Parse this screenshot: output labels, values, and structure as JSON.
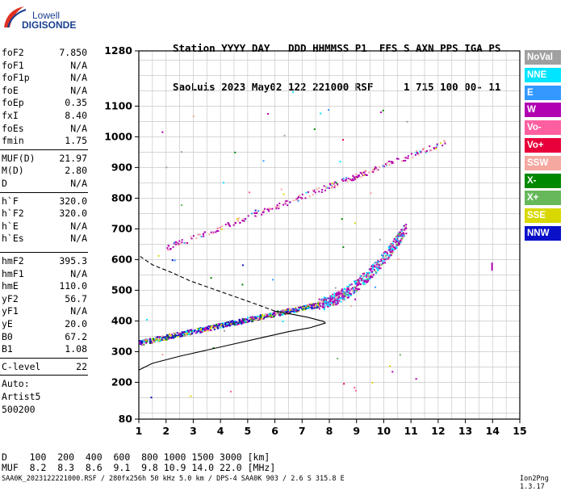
{
  "logo": {
    "line1": "Lowell",
    "line2": "DIGISONDE"
  },
  "header": {
    "line1": "Station YYYY DAY   DDD HHMMSS P1  FFS S AXN PPS IGA PS",
    "line2": "SaoLuis 2023 May02 122 221000 RSF     1 715 100 00- 11"
  },
  "params_group1": [
    {
      "k": "foF2",
      "v": "7.850"
    },
    {
      "k": "foF1",
      "v": "N/A"
    },
    {
      "k": "foF1p",
      "v": "N/A"
    },
    {
      "k": "foE",
      "v": "N/A"
    },
    {
      "k": "foEp",
      "v": "0.35"
    },
    {
      "k": "fxI",
      "v": "8.40"
    },
    {
      "k": "foEs",
      "v": "N/A"
    },
    {
      "k": "fmin",
      "v": "1.75"
    }
  ],
  "params_group2": [
    {
      "k": "MUF(D)",
      "v": "21.97"
    },
    {
      "k": "M(D)",
      "v": "2.80"
    },
    {
      "k": "D",
      "v": "N/A"
    }
  ],
  "params_group3": [
    {
      "k": "h`F",
      "v": "320.0"
    },
    {
      "k": "h`F2",
      "v": "320.0"
    },
    {
      "k": "h`E",
      "v": "N/A"
    },
    {
      "k": "h`Es",
      "v": "N/A"
    }
  ],
  "params_group4": [
    {
      "k": "hmF2",
      "v": "395.3"
    },
    {
      "k": "hmF1",
      "v": "N/A"
    },
    {
      "k": "hmE",
      "v": "110.0"
    },
    {
      "k": "yF2",
      "v": "56.7"
    },
    {
      "k": "yF1",
      "v": "N/A"
    },
    {
      "k": "yE",
      "v": "20.0"
    },
    {
      "k": "B0",
      "v": "67.2"
    },
    {
      "k": "B1",
      "v": "1.08"
    }
  ],
  "clevel": {
    "k": "C-level",
    "v": "22"
  },
  "autoscaling": {
    "line1": "Auto:",
    "line2": "Artist5",
    "line3": "500200"
  },
  "legend": [
    {
      "label": "NoVal",
      "color": "#a0a0a0"
    },
    {
      "label": "NNE",
      "color": "#00e5ff"
    },
    {
      "label": "E",
      "color": "#3399ff"
    },
    {
      "label": "W",
      "color": "#b000b0"
    },
    {
      "label": "Vo-",
      "color": "#ff5fa0"
    },
    {
      "label": "Vo+",
      "color": "#e8003a"
    },
    {
      "label": "SSW",
      "color": "#f4a8a0"
    },
    {
      "label": "X-",
      "color": "#008800"
    },
    {
      "label": "X+",
      "color": "#66b85a"
    },
    {
      "label": "SSE",
      "color": "#d8d800"
    },
    {
      "label": "NNW",
      "color": "#0a10c8"
    }
  ],
  "muf_table": {
    "d_line": "D    100  200  400  600  800 1000 1500 3000 [km]",
    "muf_line": "MUF  8.2  8.3  8.6  9.1  9.8 10.9 14.0 22.0 [MHz]"
  },
  "footer": {
    "left": "SAA0K_2023122221000.RSF / 280fx256h 50 kHz 5.0 km / DPS-4 SAA0K 903 / 2.6 S 315.8 E",
    "right": "Ion2Png 1.3.17"
  },
  "chart_data": {
    "type": "scatter",
    "xlim": [
      1,
      15
    ],
    "ylim": [
      80,
      1280
    ],
    "x_ticks": [
      1,
      2,
      3,
      4,
      5,
      6,
      7,
      8,
      9,
      10,
      11,
      12,
      13,
      14,
      15
    ],
    "y_ticks": [
      80,
      200,
      300,
      400,
      500,
      600,
      700,
      800,
      900,
      1000,
      1100,
      1280
    ],
    "y_tick_labels": [
      "80",
      "200",
      "300",
      "400",
      "500",
      "600",
      "700",
      "800",
      "900",
      "1000",
      "1100",
      "1280"
    ],
    "grid": true,
    "grid_x_step": 0.5,
    "grid_y_step": 50,
    "traces": [
      {
        "name": "o-trace F2",
        "x_from": 1.0,
        "x_to": 7.6,
        "y_from": 330,
        "y_to": 455
      },
      {
        "name": "upper o-trace F2",
        "x_from": 7.6,
        "x_to": 10.8,
        "y_from": 455,
        "y_to": 710
      },
      {
        "name": "2nd hop F2",
        "x_from": 2.0,
        "x_to": 12.3,
        "y_from": 640,
        "y_to": 985
      }
    ],
    "profile_solid": [
      [
        1.0,
        240
      ],
      [
        1.5,
        262
      ],
      [
        2.5,
        285
      ],
      [
        3.5,
        305
      ],
      [
        4.5,
        325
      ],
      [
        5.5,
        345
      ],
      [
        6.5,
        365
      ],
      [
        7.3,
        378
      ],
      [
        7.85,
        393
      ],
      [
        7.8,
        398
      ],
      [
        7.2,
        412
      ],
      [
        6.5,
        424
      ],
      [
        6.0,
        432
      ]
    ],
    "profile_dashed": [
      [
        6.0,
        432
      ],
      [
        5.3,
        455
      ],
      [
        4.5,
        480
      ],
      [
        3.7,
        505
      ],
      [
        2.9,
        530
      ],
      [
        2.2,
        558
      ],
      [
        1.5,
        583
      ],
      [
        1.05,
        610
      ]
    ]
  }
}
